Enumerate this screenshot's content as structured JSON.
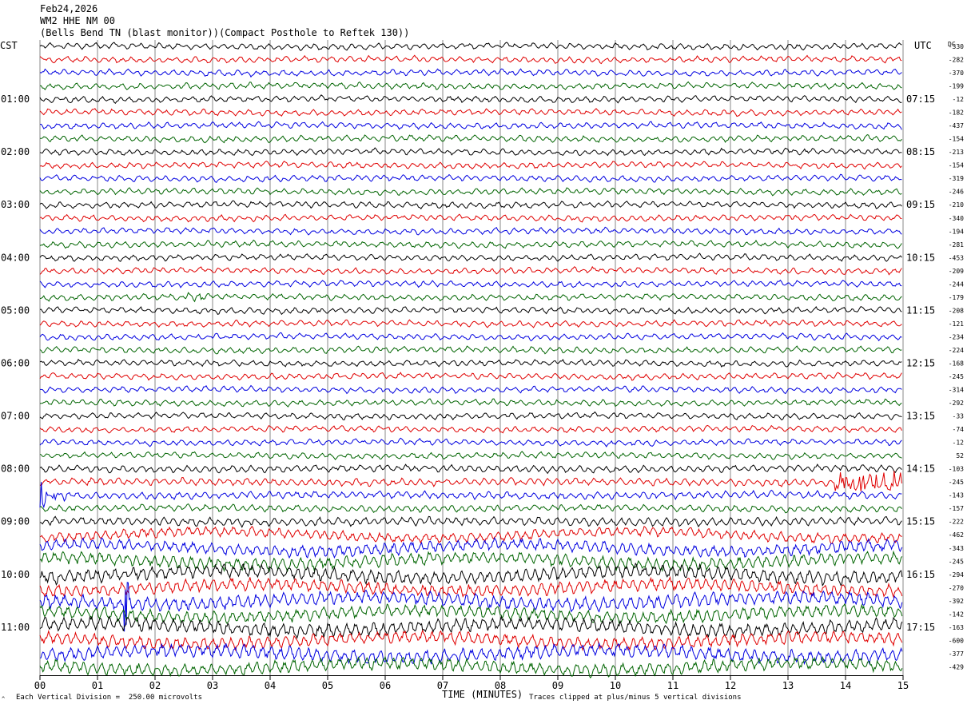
{
  "header": {
    "date": "Feb24,2026",
    "channel": "WM2 HHE NM 00",
    "station": "(Bells Bend TN (blast monitor))(Compact Posthole to Reftek 130))"
  },
  "axes": {
    "left_tz": "CST",
    "right_tz": "UTC",
    "dc_label": "DC",
    "x_title": "TIME (MINUTES)"
  },
  "footer": {
    "scale": "Each Vertical Division =  250.00 microvolts",
    "clip": "Traces clipped at plus/minus 5 vertical divisions",
    "corner_mark": "^"
  },
  "chart_data": {
    "type": "line",
    "title": "WM2 HHE NM 00",
    "xlabel": "TIME (MINUTES)",
    "xlim": [
      0,
      15
    ],
    "x_ticks": [
      "00",
      "01",
      "02",
      "03",
      "04",
      "05",
      "06",
      "07",
      "08",
      "09",
      "10",
      "11",
      "12",
      "13",
      "14",
      "15"
    ],
    "left_time_labels": [
      "01:00",
      "02:00",
      "03:00",
      "04:00",
      "05:00",
      "06:00",
      "07:00",
      "08:00",
      "09:00",
      "10:00",
      "11:00"
    ],
    "right_time_labels": [
      "07:15",
      "08:15",
      "09:15",
      "10:15",
      "11:15",
      "12:15",
      "13:15",
      "14:15",
      "15:15",
      "16:15",
      "17:15"
    ],
    "trace_colors": [
      "#000000",
      "#e00000",
      "#0000e0",
      "#006400"
    ],
    "traces_per_hour": 4,
    "dc_offsets": [
      -330,
      -282,
      -370,
      -199,
      -12,
      -182,
      -437,
      -154,
      -213,
      -154,
      -319,
      -246,
      -210,
      -340,
      -194,
      -281,
      -453,
      -209,
      -244,
      -179,
      -208,
      -121,
      -234,
      -224,
      -168,
      -245,
      -314,
      -292,
      -33,
      -74,
      -12,
      52,
      -103,
      -245,
      -143,
      -157,
      -222,
      -462,
      -343,
      -245,
      -294,
      -270,
      -392,
      -142,
      -163,
      -600,
      -377,
      -429
    ],
    "trace_activity": [
      1,
      1,
      1,
      1,
      1,
      1,
      1,
      1,
      1,
      1,
      1,
      1,
      1,
      1,
      1,
      1,
      1,
      1,
      1,
      1,
      1,
      1,
      1,
      1,
      1,
      1,
      1,
      1,
      1,
      1,
      1,
      1,
      1.2,
      1.3,
      1.3,
      1.2,
      1.5,
      1.8,
      2.2,
      2.4,
      2.6,
      2.4,
      2.6,
      2.4,
      2.6,
      2.4,
      2.6,
      2.4
    ],
    "events": [
      {
        "trace": 34,
        "minute": 0.1,
        "note": "large burst"
      },
      {
        "trace": 33,
        "minute": 14.5,
        "note": "burst"
      },
      {
        "trace": 42,
        "minute": 1.5,
        "note": "spike"
      },
      {
        "trace": 19,
        "minute": 2.7,
        "note": "small event"
      }
    ]
  }
}
